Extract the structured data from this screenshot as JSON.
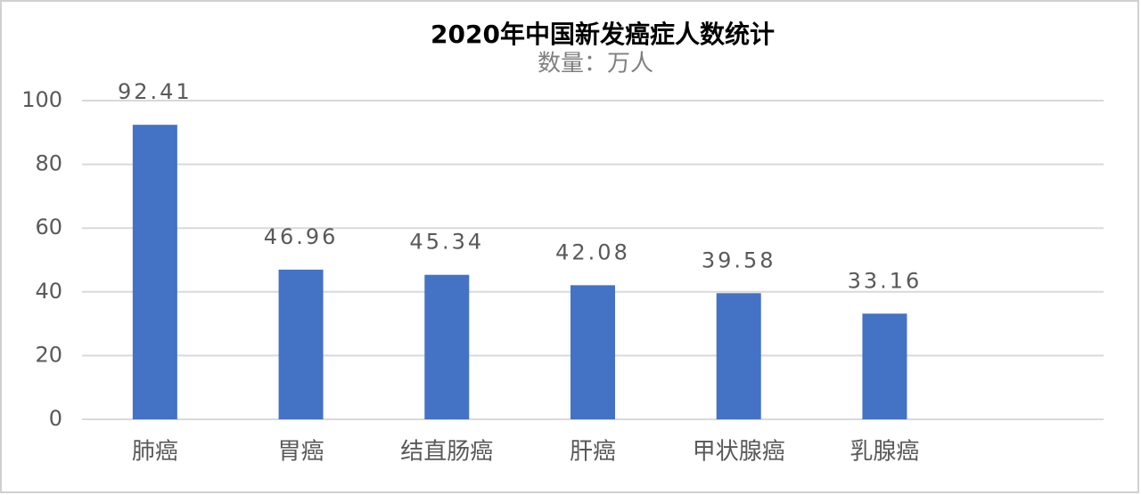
{
  "chart_data": {
    "type": "bar",
    "title": "2020年中国新发癌症人数统计",
    "subtitle": "数量：万人",
    "categories": [
      "肺癌",
      "胃癌",
      "结直肠癌",
      "肝癌",
      "甲状腺癌",
      "乳腺癌",
      null
    ],
    "values": [
      92.41,
      46.96,
      45.34,
      42.08,
      39.58,
      33.16,
      null
    ],
    "color": "#4472c4",
    "ylim": [
      0,
      100
    ],
    "yticks": [
      0,
      20,
      40,
      60,
      80,
      100
    ],
    "grid": true
  }
}
